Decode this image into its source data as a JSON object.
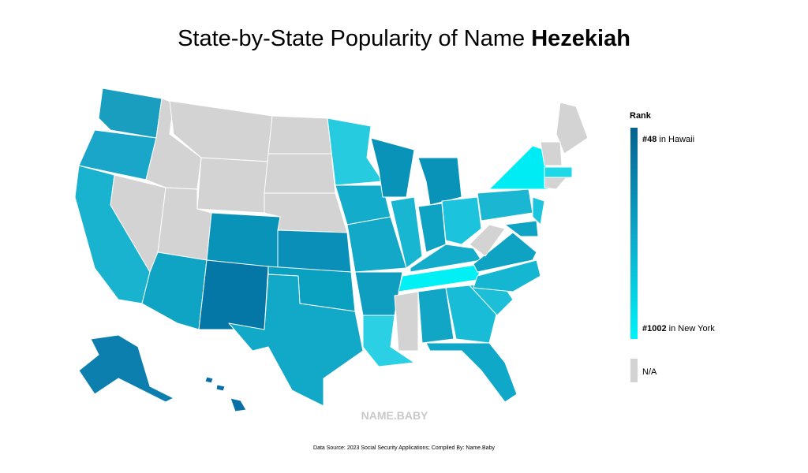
{
  "header": {
    "title": "State-by-State Popularity of Name ",
    "name": "Hezekiah"
  },
  "legend": {
    "title": "Rank",
    "top": {
      "rank": "#48",
      "place": " in Hawaii"
    },
    "bottom": {
      "rank": "#1002",
      "place": " in New York"
    },
    "na": "N/A"
  },
  "watermark": "NAME.BABY",
  "footer": "Data Source: 2023 Social Security Applications; Compiled By: Name.Baby"
}
